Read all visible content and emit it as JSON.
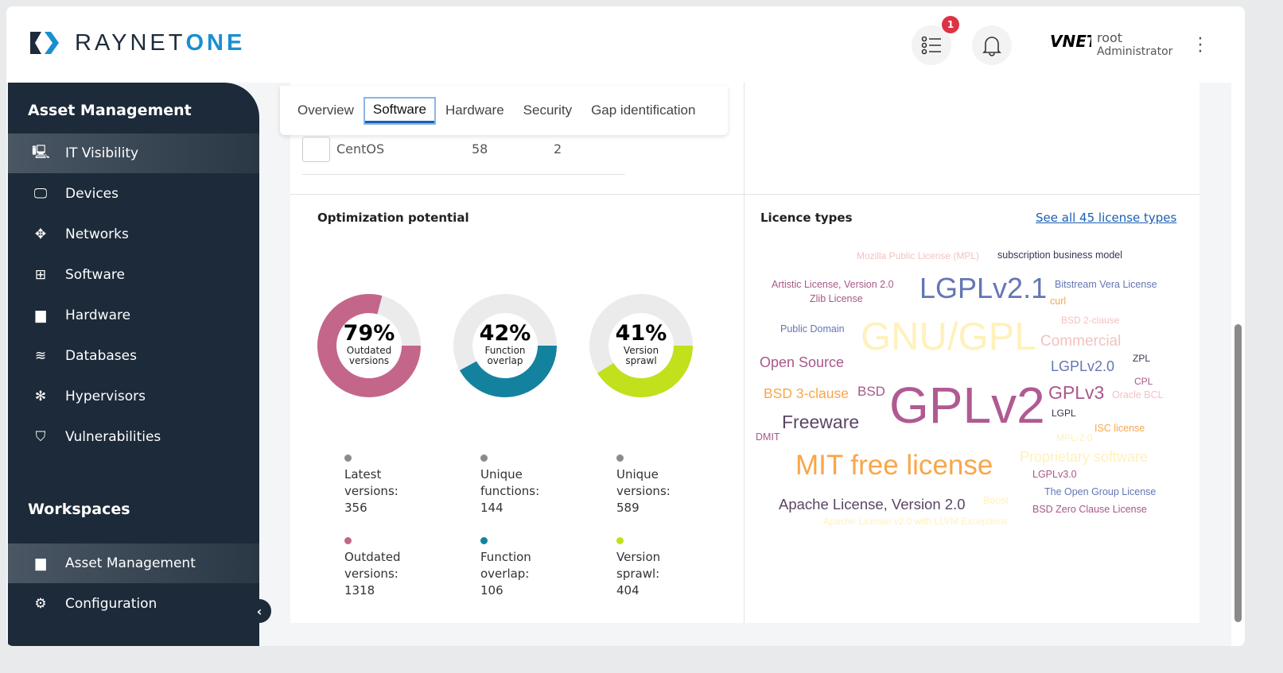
{
  "header": {
    "logo_prefix": "RAYNET",
    "logo_suffix": "ONE",
    "tasks_badge": "1",
    "avatar_text": "VNET",
    "user_name": "root",
    "user_role": "Administrator"
  },
  "sidebar": {
    "section1": "Asset Management",
    "items": [
      {
        "label": "IT Visibility",
        "icon": "monitor-chart-icon"
      },
      {
        "label": "Devices",
        "icon": "monitor-icon"
      },
      {
        "label": "Networks",
        "icon": "network-icon"
      },
      {
        "label": "Software",
        "icon": "apps-icon"
      },
      {
        "label": "Hardware",
        "icon": "hardware-icon"
      },
      {
        "label": "Databases",
        "icon": "database-icon"
      },
      {
        "label": "Hypervisors",
        "icon": "hypervisor-icon"
      },
      {
        "label": "Vulnerabilities",
        "icon": "shield-icon"
      }
    ],
    "section2": "Workspaces",
    "ws_items": [
      {
        "label": "Asset Management",
        "icon": "briefcase-icon"
      },
      {
        "label": "Configuration",
        "icon": "gear-icon"
      }
    ]
  },
  "tabs": [
    "Overview",
    "Software",
    "Hardware",
    "Security",
    "Gap identification"
  ],
  "selected_tab": "Software",
  "table_row": {
    "name": "CentOS",
    "col1": "58",
    "col2": "2"
  },
  "optimization": {
    "title": "Optimization potential",
    "donuts": [
      {
        "percent": 79,
        "label": "79%",
        "caption1": "Outdated",
        "caption2": "versions",
        "color": "#c4668a",
        "legend": [
          {
            "label": "Latest versions:",
            "value": "356",
            "color": "#8a8a8a"
          },
          {
            "label": "Outdated versions:",
            "value": "1318",
            "color": "#c4668a"
          }
        ]
      },
      {
        "percent": 42,
        "label": "42%",
        "caption1": "Function",
        "caption2": "overlap",
        "color": "#13829f",
        "legend": [
          {
            "label": "Unique functions:",
            "value": "144",
            "color": "#8a8a8a"
          },
          {
            "label": "Function overlap:",
            "value": "106",
            "color": "#13829f"
          }
        ]
      },
      {
        "percent": 41,
        "label": "41%",
        "caption1": "Version",
        "caption2": "sprawl",
        "color": "#c2e01c",
        "legend": [
          {
            "label": "Unique versions:",
            "value": "589",
            "color": "#8a8a8a"
          },
          {
            "label": "Version sprawl:",
            "value": "404",
            "color": "#c2e01c"
          }
        ]
      }
    ]
  },
  "licences": {
    "title": "Licence types",
    "see_all": "See all 45 license types",
    "words": [
      {
        "text": "Mozilla Public License (MPL)",
        "color": "#f3c2c2"
      },
      {
        "text": "subscription business model",
        "color": "#3b3350"
      },
      {
        "text": "Artistic License, Version 2.0",
        "color": "#a8588a"
      },
      {
        "text": "LGPLv2.1",
        "color": "#6476b4"
      },
      {
        "text": "Bitstream Vera License",
        "color": "#6476b4"
      },
      {
        "text": "Zlib License",
        "color": "#a8588a"
      },
      {
        "text": "curl",
        "color": "#f9a64a"
      },
      {
        "text": "BSD 2-clause",
        "color": "#f3c2c2"
      },
      {
        "text": "Public Domain",
        "color": "#6476b4"
      },
      {
        "text": "GNU/GPL",
        "color": "#fff1bb"
      },
      {
        "text": "Commercial",
        "color": "#f3c2c2"
      },
      {
        "text": "ZPL",
        "color": "#3b3350"
      },
      {
        "text": "Open Source",
        "color": "#a8588a"
      },
      {
        "text": "LGPLv2.0",
        "color": "#6476b4"
      },
      {
        "text": "CPL",
        "color": "#a8588a"
      },
      {
        "text": "BSD 3-clause",
        "color": "#f9a64a"
      },
      {
        "text": "BSD",
        "color": "#a8588a"
      },
      {
        "text": "GPLv2",
        "color": "#b05a92"
      },
      {
        "text": "GPLv3",
        "color": "#a8588a"
      },
      {
        "text": "Oracle BCL",
        "color": "#f3c2c2"
      },
      {
        "text": "Freeware",
        "color": "#5a4664"
      },
      {
        "text": "LGPL",
        "color": "#3b3350"
      },
      {
        "text": "DMIT",
        "color": "#a8588a"
      },
      {
        "text": "ISC license",
        "color": "#f9a64a"
      },
      {
        "text": "MPL-2.0",
        "color": "#fff1bb"
      },
      {
        "text": "MIT free license",
        "color": "#f9a64a"
      },
      {
        "text": "Proprietary software",
        "color": "#fff1bb"
      },
      {
        "text": "LGPLv3.0",
        "color": "#a8588a"
      },
      {
        "text": "The Open Group License",
        "color": "#6476b4"
      },
      {
        "text": "Apache License, Version 2.0",
        "color": "#5a4664"
      },
      {
        "text": "Boost",
        "color": "#fff1bb"
      },
      {
        "text": "BSD Zero Clause License",
        "color": "#a8588a"
      },
      {
        "text": "Apache License v2.0 with LLVM Exceptions",
        "color": "#fff1bb"
      }
    ]
  }
}
